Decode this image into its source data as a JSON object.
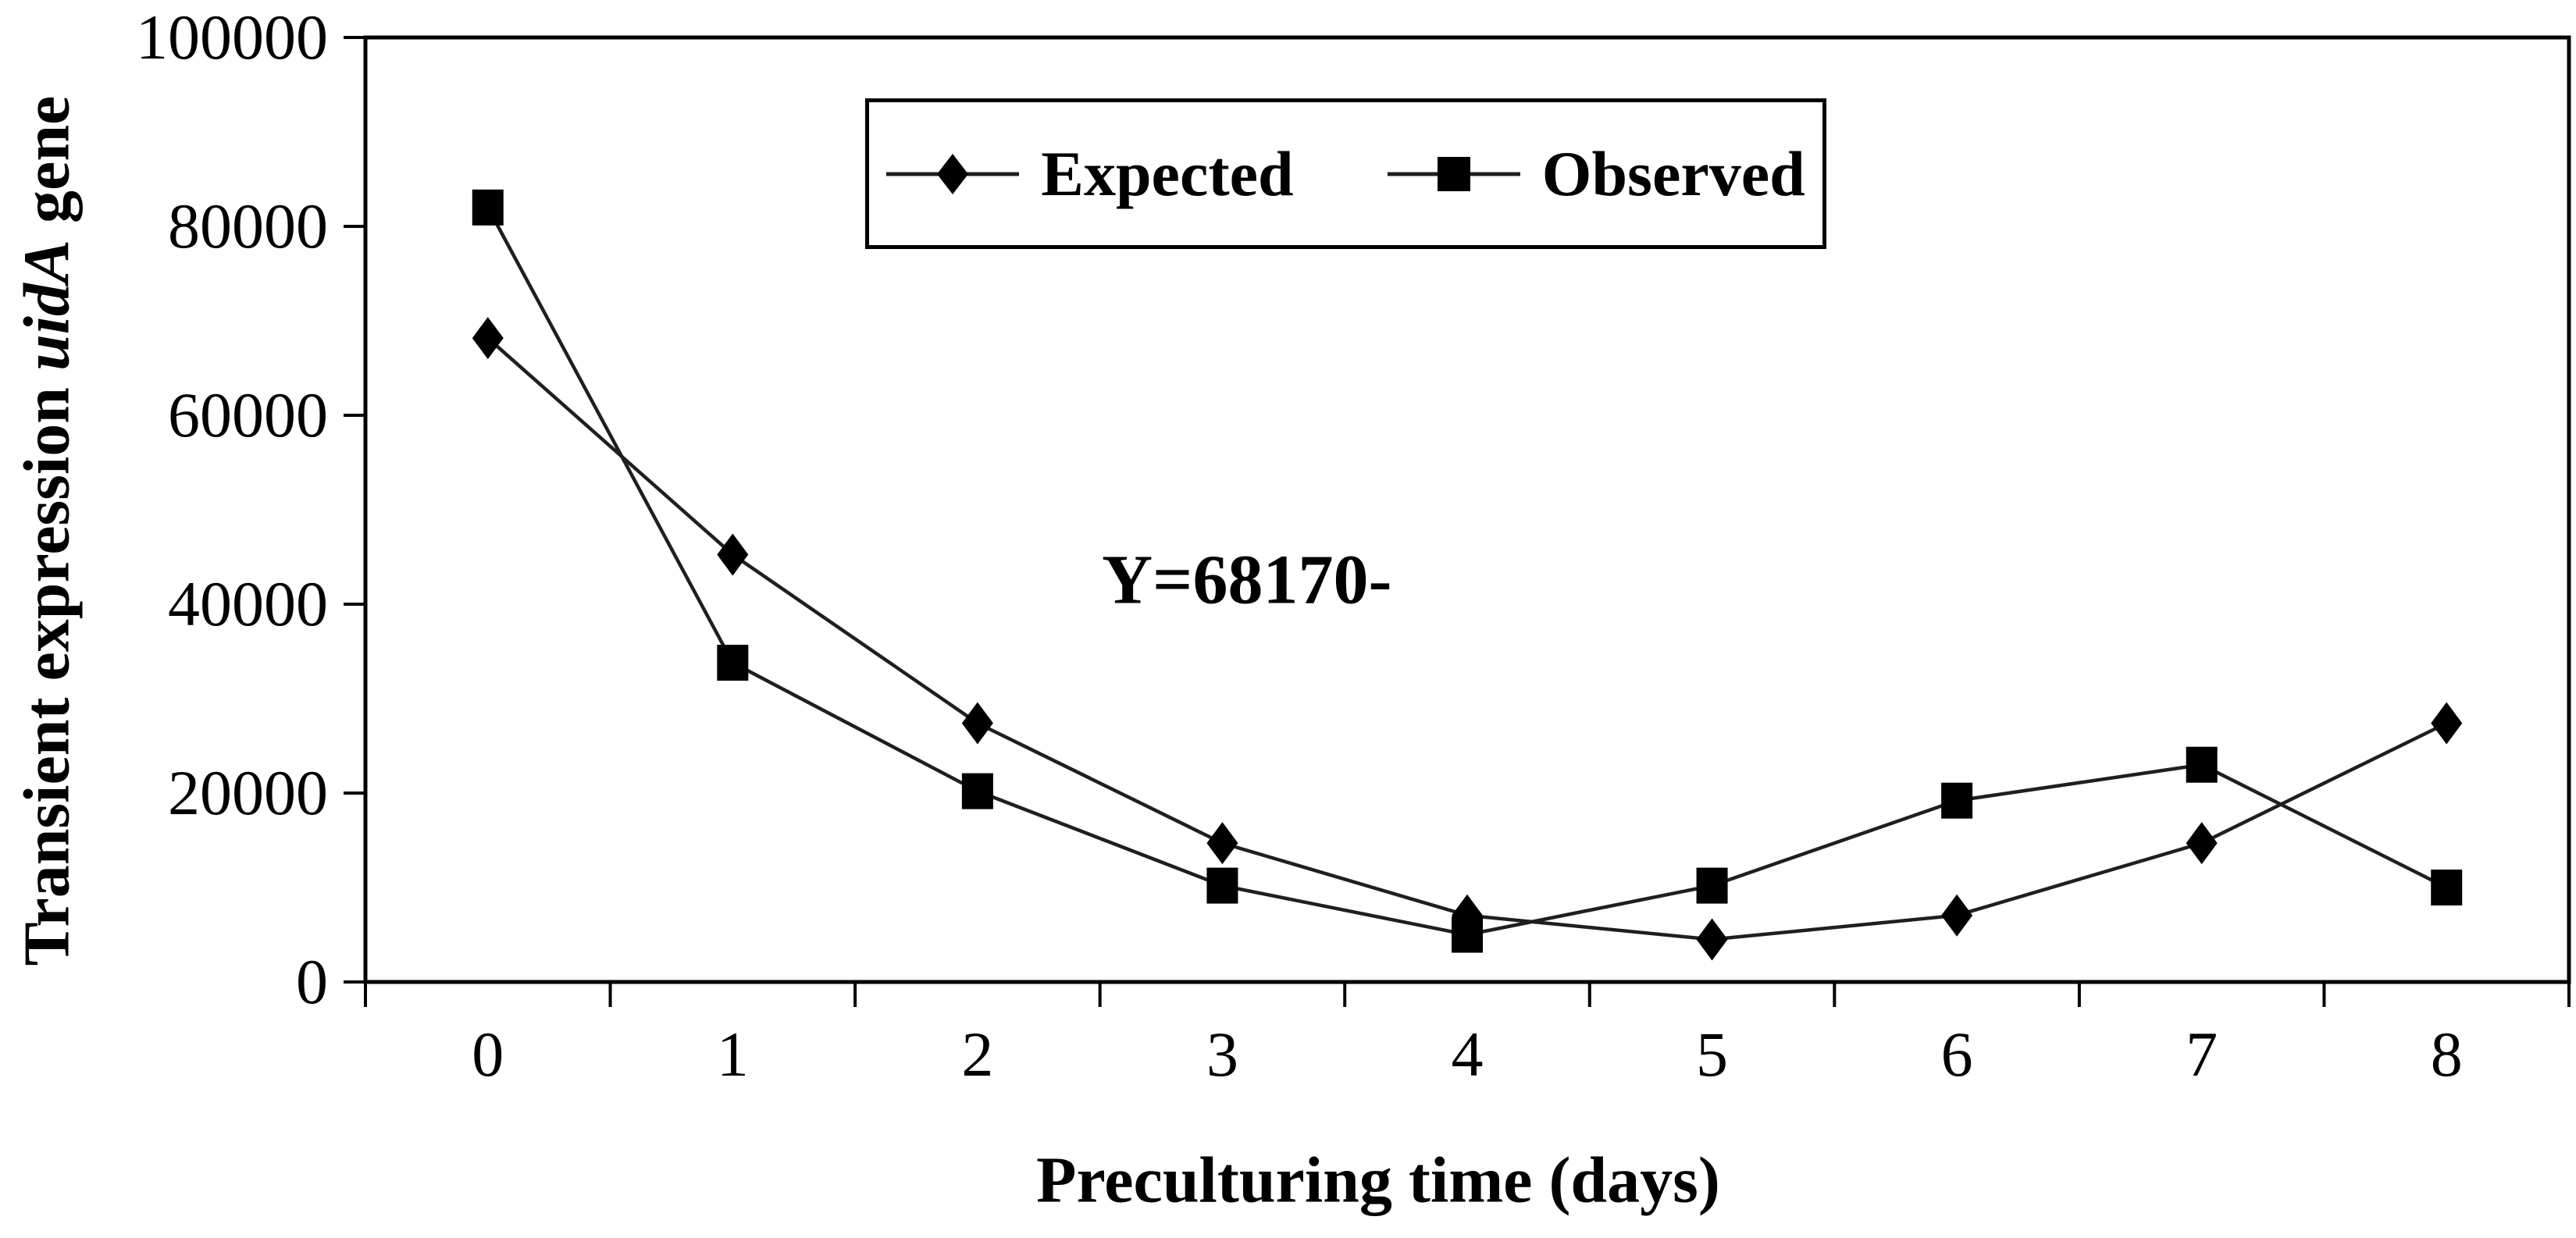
{
  "chart_data": {
    "type": "line",
    "title": "",
    "xlabel": "Preculturing time (days)",
    "ylabel": "Transient expression uidA gene",
    "ylabel_parts": {
      "prefix": "Transient expression ",
      "italic": "uidA",
      "suffix": " gene"
    },
    "x_categories": [
      "0",
      "1",
      "2",
      "3",
      "4",
      "5",
      "6",
      "7",
      "8"
    ],
    "series": [
      {
        "name": "Expected",
        "marker": "diamond",
        "values": [
          68170,
          45250,
          27400,
          14700,
          7050,
          4500,
          7050,
          14700,
          27400
        ]
      },
      {
        "name": "Observed",
        "marker": "square",
        "values": [
          82000,
          33800,
          20200,
          10200,
          5000,
          10200,
          19200,
          23000,
          10000
        ]
      }
    ],
    "ylim": [
      0,
      100000
    ],
    "y_ticks": [
      "0",
      "20000",
      "40000",
      "60000",
      "80000",
      "100000"
    ],
    "y_tick_values": [
      0,
      20000,
      40000,
      60000,
      80000,
      100000
    ],
    "annotation": {
      "text": "Y=68170-",
      "x": 3.1,
      "y": 42600
    },
    "legend": {
      "position": "top-center",
      "entries": [
        "Expected",
        "Observed"
      ]
    },
    "grid": false,
    "colors": {
      "series_line": "#1f1f1f",
      "marker_fill": "#000000",
      "axis": "#000000",
      "text": "#000000",
      "background": "#ffffff"
    }
  }
}
